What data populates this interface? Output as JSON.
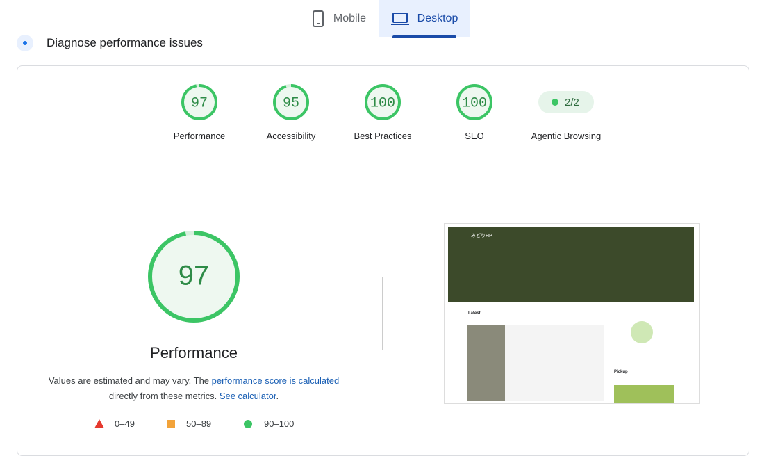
{
  "tabs": [
    "Mobile",
    "Desktop"
  ],
  "header": {
    "title": "Diagnose performance issues"
  },
  "scores": [
    {
      "value": 97,
      "label": "Performance"
    },
    {
      "value": 95,
      "label": "Accessibility"
    },
    {
      "value": 100,
      "label": "Best Practices"
    },
    {
      "value": 100,
      "label": "SEO"
    },
    {
      "value": "2/2",
      "label": "Agentic Browsing"
    }
  ],
  "main": {
    "score": 97,
    "title": "Performance",
    "note": [
      "Values are estimated and may vary. The ",
      "performance score is calculated",
      " directly from these metrics. ",
      "See calculator",
      "."
    ]
  },
  "legend": [
    "0–49",
    "50–89",
    "90–100"
  ],
  "screenshot": {
    "site": "みどりHP",
    "sections": [
      "Latest",
      "Pickup"
    ]
  }
}
